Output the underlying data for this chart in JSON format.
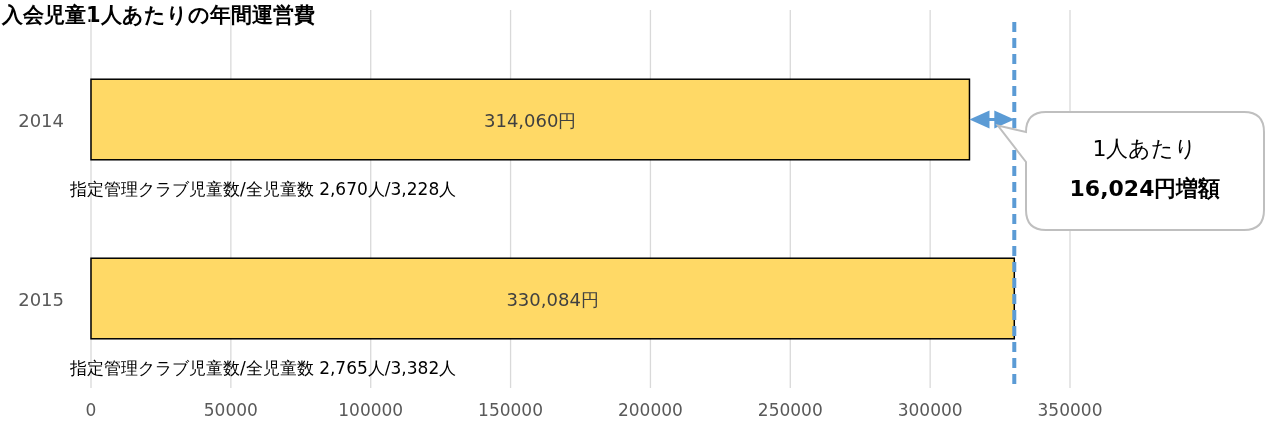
{
  "chart_data": {
    "type": "bar",
    "orientation": "horizontal",
    "title": "入会児童1人あたりの年間運営費",
    "categories": [
      "2014",
      "2015"
    ],
    "values": [
      314060,
      330084
    ],
    "color": "#ffd966",
    "value_labels": [
      "314,060円",
      "330,084円"
    ],
    "xlim": [
      0,
      350000
    ],
    "xticks": [
      0,
      50000,
      100000,
      150000,
      200000,
      250000,
      300000,
      350000
    ],
    "grid": "x",
    "ref_lines": [
      {
        "axis": "x",
        "value": 330084,
        "color": "#5b9bd5",
        "line_style": "dashed"
      }
    ],
    "annotations": [
      "指定管理クラブ児童数/全児童数  2,670人/3,228人",
      "指定管理クラブ児童数/全児童数  2,765人/3,382人",
      {
        "text": "1人あたり\n16,024円増額",
        "x": 330084,
        "y": "2014"
      }
    ]
  }
}
